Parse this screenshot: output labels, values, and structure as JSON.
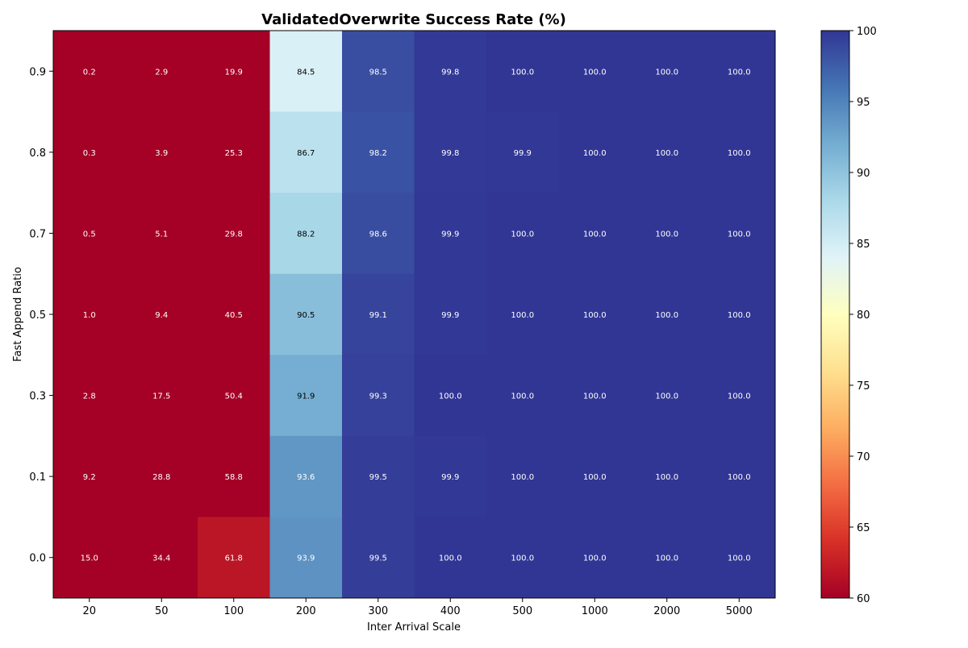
{
  "chart_data": {
    "type": "heatmap",
    "title": "ValidatedOverwrite Success Rate (%)",
    "xlabel": "Inter Arrival Scale",
    "ylabel": "Fast Append Ratio",
    "x_categories": [
      "20",
      "50",
      "100",
      "200",
      "300",
      "400",
      "500",
      "1000",
      "2000",
      "5000"
    ],
    "y_categories": [
      "0.9",
      "0.8",
      "0.7",
      "0.5",
      "0.3",
      "0.1",
      "0.0"
    ],
    "values": [
      [
        0.2,
        2.9,
        19.9,
        84.5,
        98.5,
        99.8,
        100.0,
        100.0,
        100.0,
        100.0
      ],
      [
        0.3,
        3.9,
        25.3,
        86.7,
        98.2,
        99.8,
        99.9,
        100.0,
        100.0,
        100.0
      ],
      [
        0.5,
        5.1,
        29.8,
        88.2,
        98.6,
        99.9,
        100.0,
        100.0,
        100.0,
        100.0
      ],
      [
        1.0,
        9.4,
        40.5,
        90.5,
        99.1,
        99.9,
        100.0,
        100.0,
        100.0,
        100.0
      ],
      [
        2.8,
        17.5,
        50.4,
        91.9,
        99.3,
        100.0,
        100.0,
        100.0,
        100.0,
        100.0
      ],
      [
        9.2,
        28.8,
        58.8,
        93.6,
        99.5,
        99.9,
        100.0,
        100.0,
        100.0,
        100.0
      ],
      [
        15.0,
        34.4,
        61.8,
        93.9,
        99.5,
        100.0,
        100.0,
        100.0,
        100.0,
        100.0
      ]
    ],
    "value_labels": [
      [
        "0.2",
        "2.9",
        "19.9",
        "84.5",
        "98.5",
        "99.8",
        "100.0",
        "100.0",
        "100.0",
        "100.0"
      ],
      [
        "0.3",
        "3.9",
        "25.3",
        "86.7",
        "98.2",
        "99.8",
        "99.9",
        "100.0",
        "100.0",
        "100.0"
      ],
      [
        "0.5",
        "5.1",
        "29.8",
        "88.2",
        "98.6",
        "99.9",
        "100.0",
        "100.0",
        "100.0",
        "100.0"
      ],
      [
        "1.0",
        "9.4",
        "40.5",
        "90.5",
        "99.1",
        "99.9",
        "100.0",
        "100.0",
        "100.0",
        "100.0"
      ],
      [
        "2.8",
        "17.5",
        "50.4",
        "91.9",
        "99.3",
        "100.0",
        "100.0",
        "100.0",
        "100.0",
        "100.0"
      ],
      [
        "9.2",
        "28.8",
        "58.8",
        "93.6",
        "99.5",
        "99.9",
        "100.0",
        "100.0",
        "100.0",
        "100.0"
      ],
      [
        "15.0",
        "34.4",
        "61.8",
        "93.9",
        "99.5",
        "100.0",
        "100.0",
        "100.0",
        "100.0",
        "100.0"
      ]
    ],
    "color_range": [
      60,
      100
    ],
    "colormap": "RdYlBu",
    "colormap_stops": [
      "#a50026",
      "#d73027",
      "#f46d43",
      "#fdae61",
      "#fee090",
      "#ffffbf",
      "#e0f3f8",
      "#abd9e9",
      "#74add1",
      "#4575b4",
      "#313695"
    ],
    "colorbar_ticks": [
      "60",
      "65",
      "70",
      "75",
      "80",
      "85",
      "90",
      "95",
      "100"
    ],
    "legend_placement": "right",
    "grid": false,
    "dark_text_color": "#000000",
    "light_text_color": "#ffffff"
  }
}
